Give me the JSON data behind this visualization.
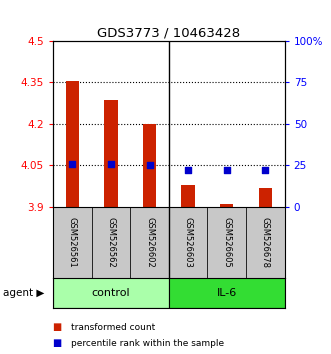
{
  "title": "GDS3773 / 10463428",
  "samples": [
    "GSM526561",
    "GSM526562",
    "GSM526602",
    "GSM526603",
    "GSM526605",
    "GSM526678"
  ],
  "red_values": [
    4.355,
    4.285,
    4.2,
    3.98,
    3.912,
    3.97
  ],
  "blue_values_pct": [
    26,
    26,
    25,
    22,
    22,
    22
  ],
  "ylim_left": [
    3.9,
    4.5
  ],
  "ylim_right": [
    0,
    100
  ],
  "yticks_left": [
    3.9,
    4.05,
    4.2,
    4.35,
    4.5
  ],
  "yticks_right": [
    0,
    25,
    50,
    75,
    100
  ],
  "ytick_labels_left": [
    "3.9",
    "4.05",
    "4.2",
    "4.35",
    "4.5"
  ],
  "ytick_labels_right": [
    "0",
    "25",
    "50",
    "75",
    "100%"
  ],
  "groups": [
    {
      "label": "control",
      "color": "#AAFFAA"
    },
    {
      "label": "IL-6",
      "color": "#33DD33"
    }
  ],
  "bar_color": "#CC2200",
  "dot_color": "#0000CC",
  "bar_width": 0.35,
  "sample_bg_color": "#C8C8C8",
  "legend_bar_label": "transformed count",
  "legend_dot_label": "percentile rank within the sample",
  "agent_label": "agent",
  "dotted_yticks": [
    4.05,
    4.2,
    4.35
  ]
}
